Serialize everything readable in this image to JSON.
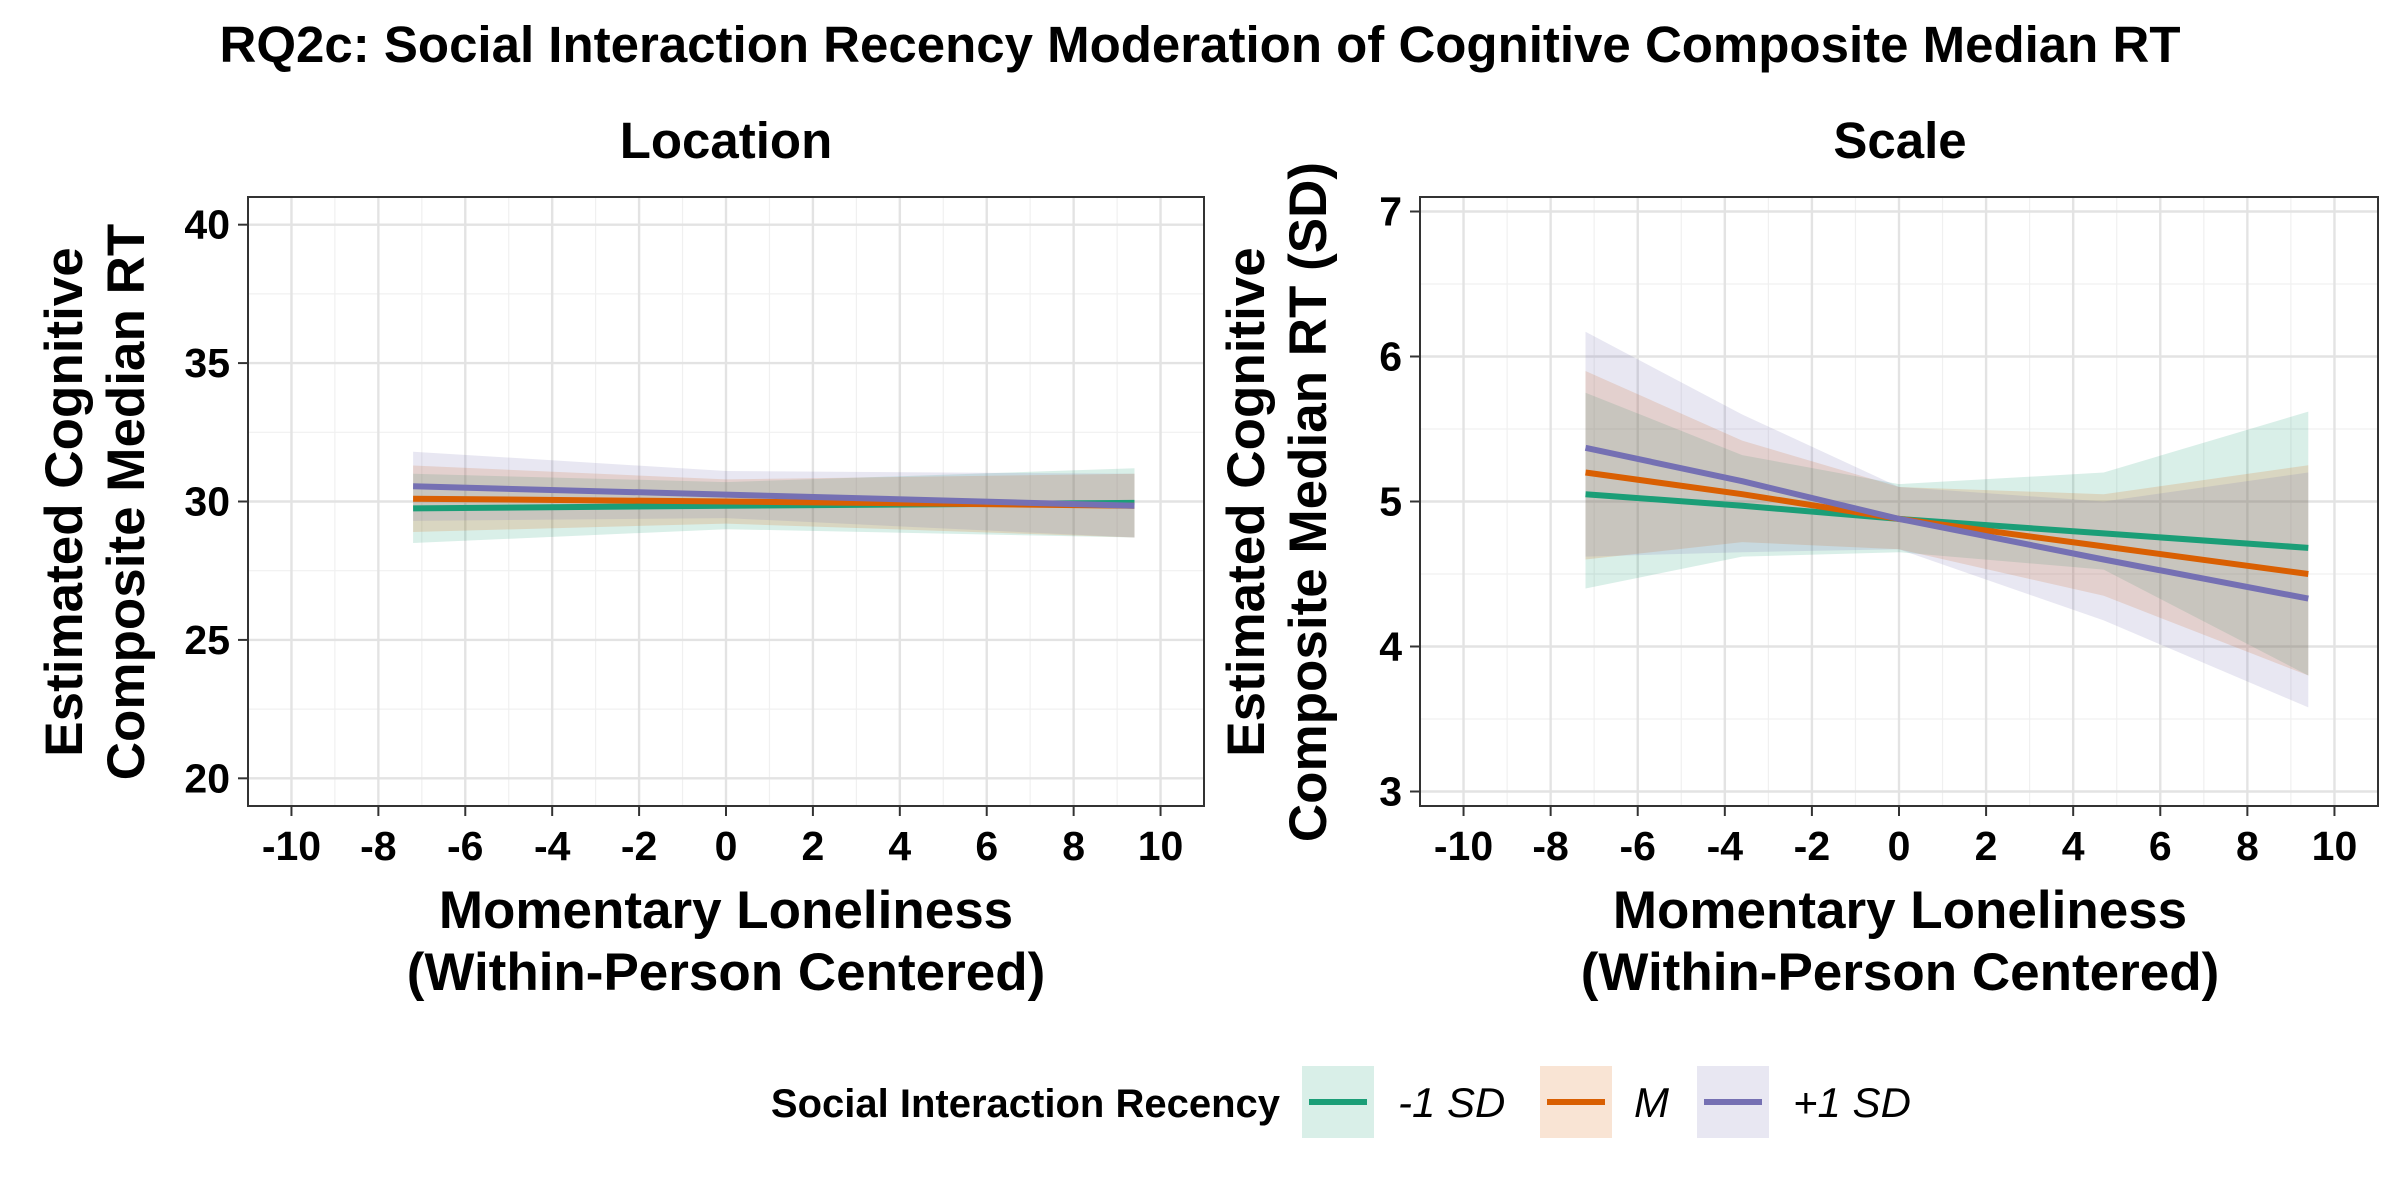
{
  "title": "RQ2c: Social Interaction Recency Moderation of Cognitive Composite Median RT",
  "colors": {
    "neg1sd": "#1b9e77",
    "mean": "#d95f02",
    "pos1sd": "#7570b3"
  },
  "legend": {
    "title": "Social Interaction Recency",
    "items": [
      {
        "key": "neg1sd",
        "label": "-1 SD"
      },
      {
        "key": "mean",
        "label": "M"
      },
      {
        "key": "pos1sd",
        "label": "+1 SD"
      }
    ],
    "position": "bottom"
  },
  "chart_data": [
    {
      "type": "line",
      "panel_title": "Location",
      "xlabel_line1": "Momentary Loneliness",
      "xlabel_line2": "(Within-Person Centered)",
      "ylabel_line1": "Estimated Cognitive",
      "ylabel_line2": "Composite Median RT",
      "xlim": [
        -11,
        11
      ],
      "ylim": [
        19,
        41
      ],
      "xticks": [
        -10,
        -8,
        -6,
        -4,
        -2,
        0,
        2,
        4,
        6,
        8,
        10
      ],
      "yticks": [
        20,
        25,
        30,
        35,
        40
      ],
      "x_tick_labels": [
        "-10",
        "-8",
        "-6",
        "-4",
        "-2",
        "0",
        "2",
        "4",
        "6",
        "8",
        "10"
      ],
      "y_tick_labels": [
        "20",
        "25",
        "30",
        "35",
        "40"
      ],
      "grid": true,
      "x": [
        -7.2,
        0,
        9.4
      ],
      "series": [
        {
          "key": "neg1sd",
          "name": "-1 SD",
          "values": [
            29.75,
            29.85,
            29.95
          ],
          "lower": [
            28.5,
            29.0,
            28.7
          ],
          "upper": [
            31.0,
            30.7,
            31.2
          ]
        },
        {
          "key": "mean",
          "name": "M",
          "values": [
            30.1,
            30.0,
            29.85
          ],
          "lower": [
            28.9,
            29.2,
            28.7
          ],
          "upper": [
            31.3,
            30.8,
            31.0
          ]
        },
        {
          "key": "pos1sd",
          "name": "+1 SD",
          "values": [
            30.55,
            30.25,
            29.85
          ],
          "lower": [
            29.3,
            29.4,
            28.7
          ],
          "upper": [
            31.8,
            31.1,
            31.0
          ]
        }
      ]
    },
    {
      "type": "line",
      "panel_title": "Scale",
      "xlabel_line1": "Momentary Loneliness",
      "xlabel_line2": "(Within-Person Centered)",
      "ylabel_line1": "Estimated Cognitive",
      "ylabel_line2": "Composite Median RT (SD)",
      "xlim": [
        -11,
        11
      ],
      "ylim": [
        2.9,
        7.1
      ],
      "xticks": [
        -10,
        -8,
        -6,
        -4,
        -2,
        0,
        2,
        4,
        6,
        8,
        10
      ],
      "yticks": [
        3,
        4,
        5,
        6,
        7
      ],
      "x_tick_labels": [
        "-10",
        "-8",
        "-6",
        "-4",
        "-2",
        "0",
        "2",
        "4",
        "6",
        "8",
        "10"
      ],
      "y_tick_labels": [
        "3",
        "4",
        "5",
        "6",
        "7"
      ],
      "grid": true,
      "x": [
        -7.2,
        -3.6,
        0,
        4.7,
        9.4
      ],
      "series": [
        {
          "key": "neg1sd",
          "name": "-1 SD",
          "values": [
            5.05,
            4.97,
            4.88,
            4.78,
            4.68
          ],
          "lower": [
            4.4,
            4.62,
            4.65,
            4.53,
            3.8
          ],
          "upper": [
            5.75,
            5.32,
            5.12,
            5.2,
            5.62
          ]
        },
        {
          "key": "mean",
          "name": "M",
          "values": [
            5.2,
            5.05,
            4.88,
            4.69,
            4.5
          ],
          "lower": [
            4.6,
            4.72,
            4.67,
            4.35,
            3.8
          ],
          "upper": [
            5.9,
            5.42,
            5.1,
            5.05,
            5.25
          ]
        },
        {
          "key": "pos1sd",
          "name": "+1 SD",
          "values": [
            5.37,
            5.14,
            4.88,
            4.6,
            4.33
          ],
          "lower": [
            4.62,
            4.65,
            4.67,
            4.18,
            3.58
          ],
          "upper": [
            6.17,
            5.6,
            5.1,
            5.0,
            5.2
          ]
        }
      ]
    }
  ]
}
